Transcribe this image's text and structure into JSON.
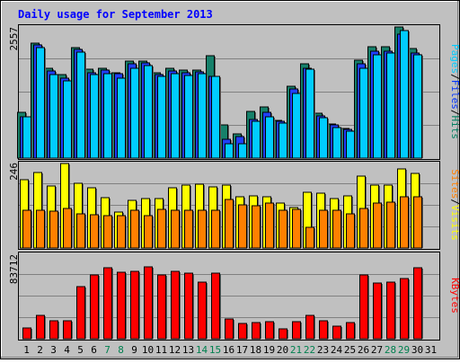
{
  "chart_data": {
    "title": "Daily usage for September 2013",
    "days": [
      "1",
      "2",
      "3",
      "4",
      "5",
      "6",
      "7",
      "8",
      "9",
      "10",
      "11",
      "12",
      "13",
      "14",
      "15",
      "16",
      "17",
      "18",
      "19",
      "20",
      "21",
      "22",
      "23",
      "24",
      "25",
      "26",
      "27",
      "28",
      "29",
      "30",
      "31"
    ],
    "weekend_days": [
      "7",
      "8",
      "14",
      "15",
      "21",
      "22",
      "28",
      "29"
    ],
    "panels": [
      {
        "type": "bar",
        "name": "traffic",
        "ymax_label": "2557",
        "ymax": 2557,
        "legend": [
          {
            "label": "Pages",
            "color": "#00ccff"
          },
          {
            "label": "/",
            "color": "#000000"
          },
          {
            "label": "Files",
            "color": "#0033ff"
          },
          {
            "label": "/",
            "color": "#000000"
          },
          {
            "label": "Hits",
            "color": "#008060"
          }
        ],
        "series": [
          {
            "name": "Hits",
            "color": "#16806a",
            "values": [
              892,
              2236,
              1756,
              1634,
              2161,
              1740,
              1744,
              1672,
              1900,
              1890,
              1672,
              1753,
              1718,
              1715,
              1994,
              650,
              478,
              902,
              1003,
              732,
              1408,
              1834,
              882,
              665,
              571,
              1915,
              2169,
              2169,
              2557,
              2130,
              0
            ]
          },
          {
            "name": "Files",
            "color": "#2040ff",
            "values": [
              800,
              2198,
              1697,
              1562,
              2122,
              1671,
              1720,
              1652,
              1845,
              1856,
              1628,
              1693,
              1670,
              1690,
              1600,
              370,
              419,
              760,
              901,
              715,
              1354,
              1750,
              830,
              648,
              556,
              1836,
              2079,
              2087,
              2410,
              2049,
              0
            ]
          },
          {
            "name": "Pages",
            "color": "#00ccff",
            "values": [
              800,
              2154,
              1636,
              1513,
              2073,
              1628,
              1648,
              1553,
              1745,
              1798,
              1589,
              1639,
              1616,
              1646,
              1593,
              283,
              277,
              724,
              813,
              684,
              1256,
              1737,
              781,
              594,
              533,
              1750,
              2007,
              2055,
              2486,
              2022,
              0
            ]
          }
        ]
      },
      {
        "type": "bar",
        "name": "visitors",
        "ymax_label": "246",
        "ymax": 246,
        "legend": [
          {
            "label": "Sites",
            "color": "#ff8000"
          },
          {
            "label": "/",
            "color": "#000000"
          },
          {
            "label": "Visits",
            "color": "#ffff00"
          }
        ],
        "series": [
          {
            "name": "Visits",
            "color": "#ffff00",
            "values": [
              198,
              220,
              181,
              245,
              189,
              176,
              147,
              104,
              140,
              143,
              145,
              176,
              183,
              186,
              178,
              182,
              148,
              153,
              148,
              131,
              119,
              163,
              159,
              145,
              153,
              210,
              183,
              183,
              229,
              217,
              0
            ]
          },
          {
            "name": "Sites",
            "color": "#ff8000",
            "values": [
              110,
              111,
              106,
              115,
              99,
              96,
              95,
              95,
              111,
              93,
              113,
              110,
              110,
              111,
              111,
              142,
              125,
              124,
              130,
              111,
              112,
              61,
              111,
              111,
              99,
              114,
              130,
              133,
              148,
              150,
              0
            ]
          }
        ]
      },
      {
        "type": "bar",
        "name": "kbytes",
        "ymax_label": "83712",
        "ymax": 83712,
        "legend": [
          {
            "label": "KBytes",
            "color": "#ff0000"
          }
        ],
        "series": [
          {
            "name": "KBytes",
            "color": "#ff0000",
            "values": [
              10900,
              23220,
              17960,
              17960,
              51500,
              63580,
              69940,
              65860,
              66850,
              70870,
              62930,
              66850,
              64860,
              56060,
              64860,
              19950,
              14940,
              15930,
              16930,
              9920,
              16930,
              23220,
              17960,
              12790,
              15890,
              62930,
              55070,
              56060,
              60050,
              69940,
              0
            ]
          }
        ]
      }
    ]
  }
}
